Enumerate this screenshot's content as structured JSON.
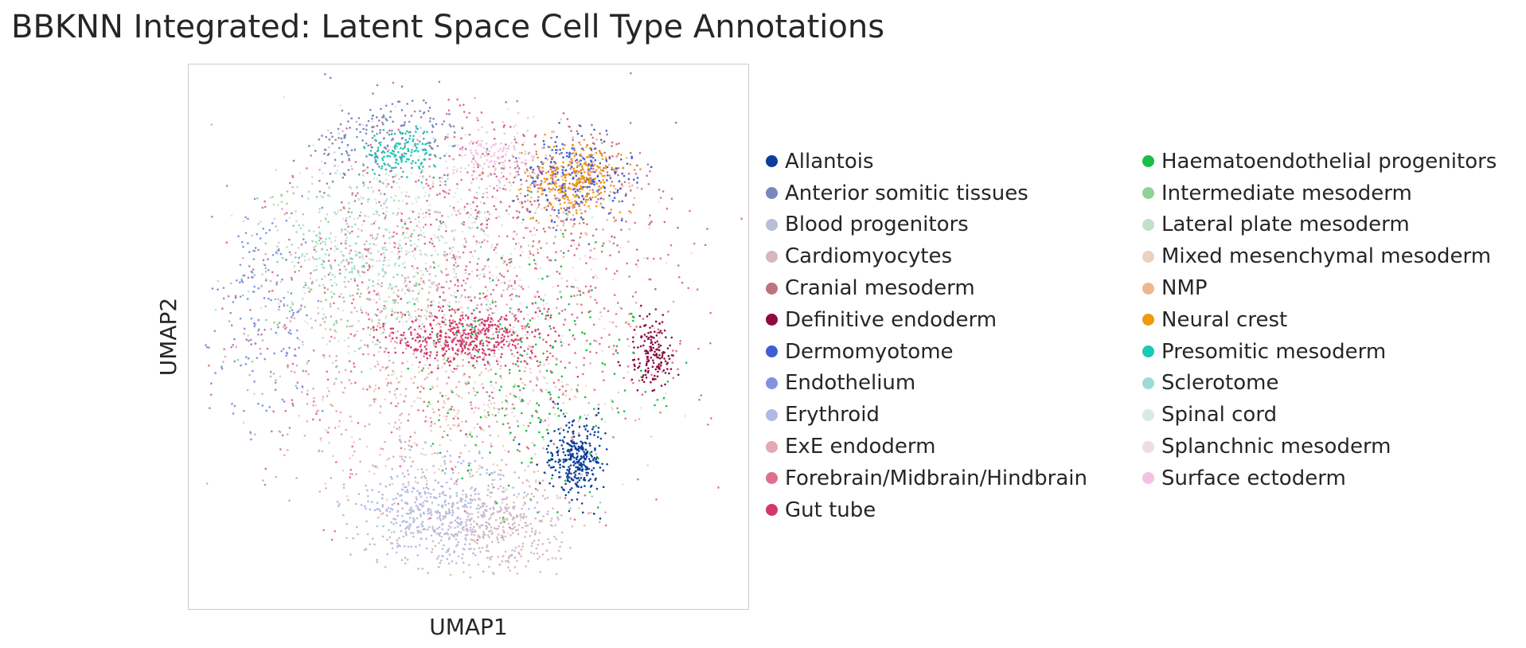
{
  "chart_data": {
    "type": "scatter",
    "title": "BBKNN Integrated: Latent Space Cell Type Annotations",
    "xlabel": "UMAP1",
    "ylabel": "UMAP2",
    "grid": false,
    "legend_position": "right, two columns",
    "x_ticks": [],
    "y_ticks": [],
    "series": [
      {
        "name": "Allantois",
        "color": "#0b3e9a",
        "center": [
          0.69,
          0.28
        ],
        "spread": [
          0.025,
          0.035
        ],
        "weight": 1.2
      },
      {
        "name": "Anterior somitic tissues",
        "color": "#7b86bd",
        "center": [
          0.33,
          0.88
        ],
        "spread": [
          0.07,
          0.05
        ],
        "weight": 1.0
      },
      {
        "name": "Blood progenitors",
        "color": "#b9bedb",
        "center": [
          0.47,
          0.16
        ],
        "spread": [
          0.08,
          0.04
        ],
        "weight": 1.2
      },
      {
        "name": "Cardiomyocytes",
        "color": "#d8b8bc",
        "center": [
          0.56,
          0.14
        ],
        "spread": [
          0.07,
          0.04
        ],
        "weight": 1.0
      },
      {
        "name": "Cranial mesoderm",
        "color": "#bf7381",
        "center": [
          0.66,
          0.78
        ],
        "spread": [
          0.1,
          0.06
        ],
        "weight": 1.0
      },
      {
        "name": "Definitive endoderm",
        "color": "#8d0b3f",
        "center": [
          0.83,
          0.47
        ],
        "spread": [
          0.02,
          0.03
        ],
        "weight": 0.6
      },
      {
        "name": "Dermomyotome",
        "color": "#3d5fd6",
        "center": [
          0.7,
          0.8
        ],
        "spread": [
          0.05,
          0.04
        ],
        "weight": 0.8
      },
      {
        "name": "Endothelium",
        "color": "#8392e0",
        "center": [
          0.12,
          0.56
        ],
        "spread": [
          0.06,
          0.13
        ],
        "weight": 0.7
      },
      {
        "name": "Erythroid",
        "color": "#b0b9e6",
        "center": [
          0.44,
          0.2
        ],
        "spread": [
          0.08,
          0.05
        ],
        "weight": 0.9
      },
      {
        "name": "ExE endoderm",
        "color": "#e3a8b4",
        "center": [
          0.4,
          0.45
        ],
        "spread": [
          0.17,
          0.18
        ],
        "weight": 2.0
      },
      {
        "name": "Forebrain/Midbrain/Hindbrain",
        "color": "#de6f8e",
        "center": [
          0.52,
          0.6
        ],
        "spread": [
          0.21,
          0.18
        ],
        "weight": 3.5
      },
      {
        "name": "Gut tube",
        "color": "#d2386b",
        "center": [
          0.5,
          0.5
        ],
        "spread": [
          0.07,
          0.025
        ],
        "weight": 1.6
      },
      {
        "name": "Haematoendothelial progenitors",
        "color": "#17c043",
        "center": [
          0.61,
          0.45
        ],
        "spread": [
          0.12,
          0.12
        ],
        "weight": 0.9
      },
      {
        "name": "Intermediate mesoderm",
        "color": "#8fd39a",
        "center": [
          0.3,
          0.6
        ],
        "spread": [
          0.1,
          0.1
        ],
        "weight": 0.6
      },
      {
        "name": "Lateral plate mesoderm",
        "color": "#c2dfca",
        "center": [
          0.35,
          0.66
        ],
        "spread": [
          0.13,
          0.1
        ],
        "weight": 1.0
      },
      {
        "name": "Mixed mesenchymal mesoderm",
        "color": "#ecd0c0",
        "center": [
          0.5,
          0.36
        ],
        "spread": [
          0.12,
          0.1
        ],
        "weight": 1.0
      },
      {
        "name": "NMP",
        "color": "#efb78e",
        "center": [
          0.68,
          0.77
        ],
        "spread": [
          0.06,
          0.05
        ],
        "weight": 0.5
      },
      {
        "name": "Neural crest",
        "color": "#f0990e",
        "center": [
          0.69,
          0.79
        ],
        "spread": [
          0.04,
          0.03
        ],
        "weight": 0.9
      },
      {
        "name": "Presomitic mesoderm",
        "color": "#1cc9b3",
        "center": [
          0.38,
          0.84
        ],
        "spread": [
          0.03,
          0.02
        ],
        "weight": 0.5
      },
      {
        "name": "Sclerotome",
        "color": "#9fdbd4",
        "center": [
          0.28,
          0.66
        ],
        "spread": [
          0.08,
          0.06
        ],
        "weight": 0.5
      },
      {
        "name": "Spinal cord",
        "color": "#d4ebe6",
        "center": [
          0.42,
          0.68
        ],
        "spread": [
          0.12,
          0.1
        ],
        "weight": 1.0
      },
      {
        "name": "Splanchnic mesoderm",
        "color": "#f1dbe8",
        "center": [
          0.55,
          0.58
        ],
        "spread": [
          0.15,
          0.15
        ],
        "weight": 1.0
      },
      {
        "name": "Surface ectoderm",
        "color": "#f3c2e3",
        "center": [
          0.55,
          0.83
        ],
        "spread": [
          0.04,
          0.03
        ],
        "weight": 0.5
      }
    ]
  }
}
